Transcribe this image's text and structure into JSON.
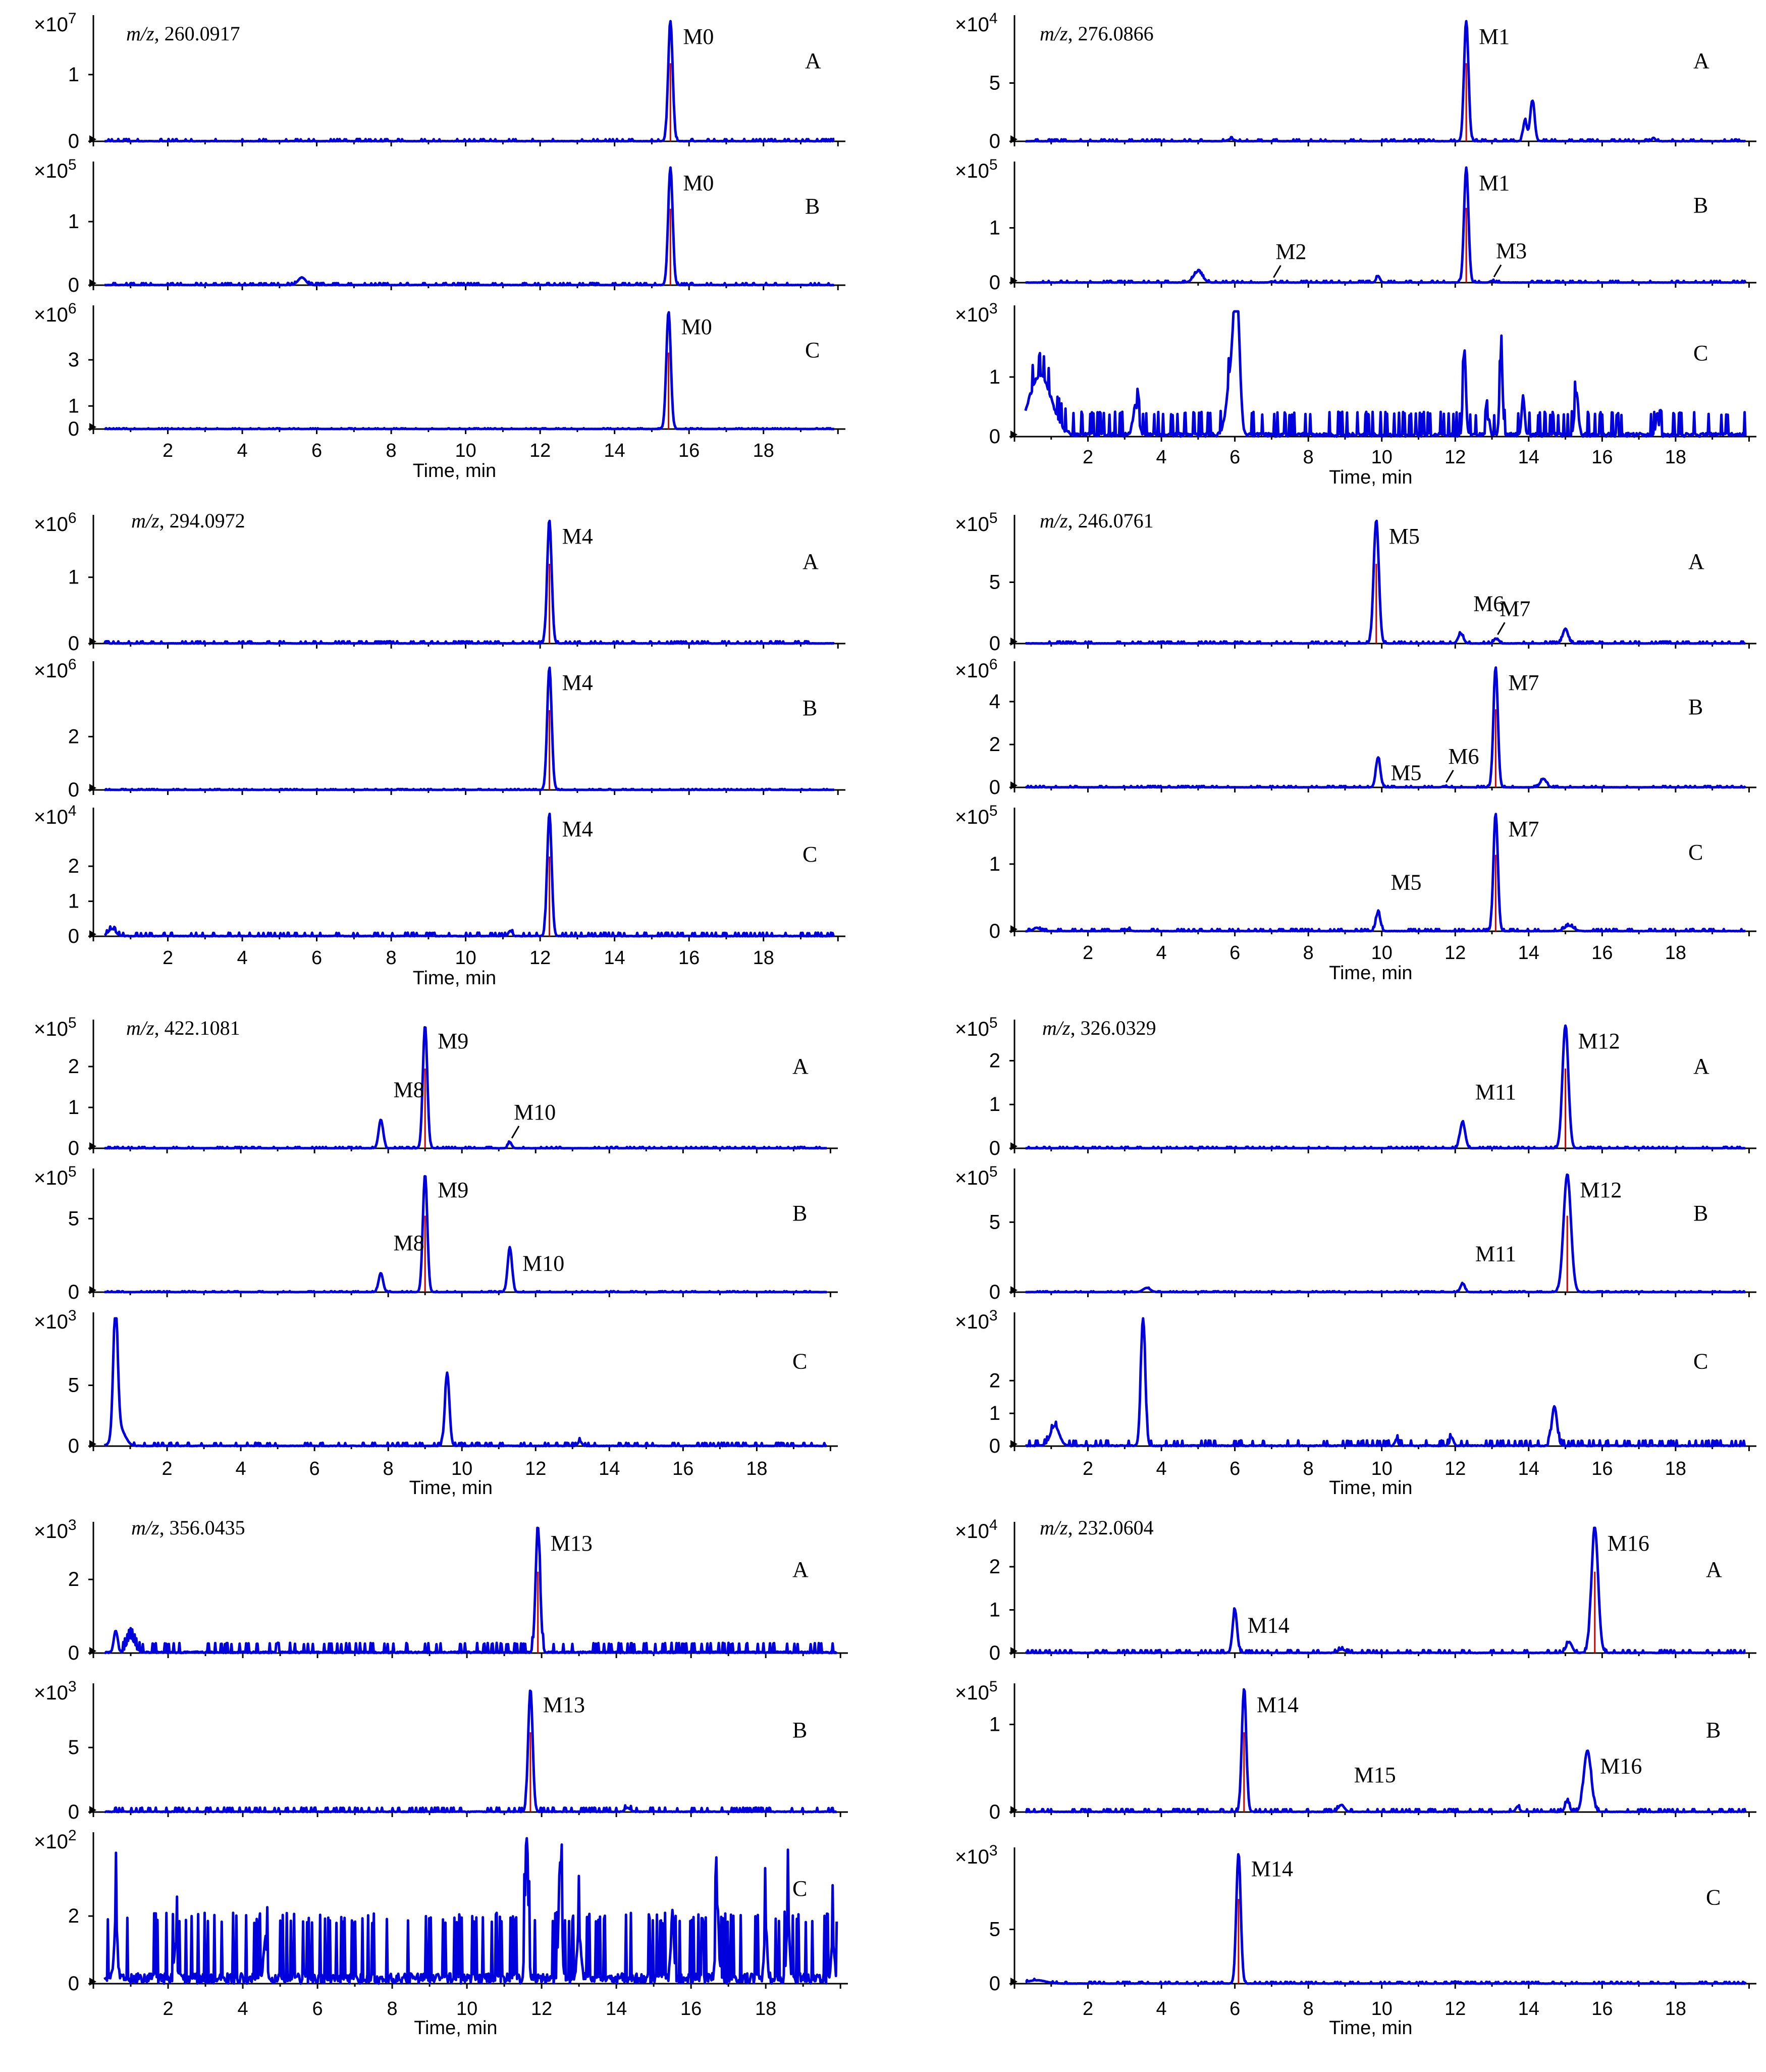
{
  "chart_data": {
    "type": "line",
    "x_label": "Time, min",
    "x_ticks": [
      "2",
      "4",
      "6",
      "8",
      "10",
      "12",
      "14",
      "16",
      "18"
    ],
    "groups": [
      {
        "id": "g1",
        "mz_prefix": "m/z",
        "mz_value": ", 260.0917",
        "panels": [
          {
            "sample": "A",
            "scale_base": "×10",
            "scale_exp": "7",
            "yticks": [
              "0",
              "1"
            ],
            "ymax": 1.8,
            "peaks": [
              {
                "x": 15.5,
                "y": 1.8,
                "w": 0.06,
                "label": "M0"
              }
            ],
            "noise": 0.01,
            "xlabel": false
          },
          {
            "sample": "B",
            "scale_base": "×10",
            "scale_exp": "5",
            "yticks": [
              "0",
              "1"
            ],
            "ymax": 1.85,
            "peaks": [
              {
                "x": 15.5,
                "y": 1.85,
                "w": 0.06,
                "label": "M0"
              },
              {
                "x": 5.6,
                "y": 0.12,
                "w": 0.1
              }
            ],
            "noise": 0.01,
            "xlabel": false
          },
          {
            "sample": "C",
            "scale_base": "×10",
            "scale_exp": "6",
            "yticks": [
              "0",
              "1",
              "3"
            ],
            "ymax": 5.1,
            "peaks": [
              {
                "x": 15.45,
                "y": 5.1,
                "w": 0.06,
                "label": "M0"
              }
            ],
            "noise": 0.01,
            "xlabel": true
          }
        ]
      },
      {
        "id": "g2",
        "mz_prefix": "m/z",
        "mz_value": ", 276.0866",
        "panels": [
          {
            "sample": "A",
            "scale_base": "×10",
            "scale_exp": "4",
            "yticks": [
              "0",
              "5"
            ],
            "ymax": 10.3,
            "peaks": [
              {
                "x": 12.3,
                "y": 10.3,
                "w": 0.06,
                "label": "M1"
              },
              {
                "x": 14.1,
                "y": 3.5,
                "w": 0.06
              },
              {
                "x": 13.9,
                "y": 1.8,
                "w": 0.05
              },
              {
                "x": 5.9,
                "y": 0.2,
                "w": 0.08
              },
              {
                "x": 17.4,
                "y": 0.3,
                "w": 0.04
              }
            ],
            "noise": 0.05,
            "xlabel": false
          },
          {
            "sample": "B",
            "scale_base": "×10",
            "scale_exp": "5",
            "yticks": [
              "0",
              "1"
            ],
            "ymax": 2.1,
            "peaks": [
              {
                "x": 12.3,
                "y": 2.1,
                "w": 0.06,
                "label": "M1"
              },
              {
                "x": 5.0,
                "y": 0.2,
                "w": 0.12
              },
              {
                "x": 9.9,
                "y": 0.12,
                "w": 0.05
              },
              {
                "x": 7.0,
                "y": 0.02,
                "w": 0.05,
                "label": "M2"
              },
              {
                "x": 13.0,
                "y": 0.03,
                "w": 0.05,
                "label": "M3"
              }
            ],
            "noise": 0.01,
            "xlabel": false
          },
          {
            "sample": "C",
            "scale_base": "×10",
            "scale_exp": "3",
            "yticks": [
              "0",
              "1"
            ],
            "ymax": 2.1,
            "peaks": [
              {
                "x": 6.05,
                "y": 2.1,
                "w": 0.08
              },
              {
                "x": 5.9,
                "y": 1.0,
                "w": 0.12
              },
              {
                "x": 12.25,
                "y": 1.4,
                "w": 0.04
              },
              {
                "x": 13.25,
                "y": 1.35,
                "w": 0.04
              },
              {
                "x": 13.85,
                "y": 0.65,
                "w": 0.04
              },
              {
                "x": 15.3,
                "y": 0.7,
                "w": 0.05
              },
              {
                "x": 3.3,
                "y": 0.5,
                "w": 0.07
              },
              {
                "x": 0.7,
                "y": 1.0,
                "w": 0.3
              },
              {
                "x": 17.5,
                "y": 0.35,
                "w": 0.04
              },
              {
                "x": 12.9,
                "y": 0.3,
                "w": 0.04
              }
            ],
            "noise": 0.12,
            "xlabel": true
          }
        ]
      },
      {
        "id": "g3",
        "mz_prefix": "m/z",
        "mz_value": ", 294.0972",
        "panels": [
          {
            "sample": "A",
            "scale_base": "×10",
            "scale_exp": "6",
            "yticks": [
              "0",
              "1"
            ],
            "ymax": 1.85,
            "peaks": [
              {
                "x": 12.25,
                "y": 1.85,
                "w": 0.06,
                "label": "M4"
              }
            ],
            "noise": 0.01,
            "xlabel": false
          },
          {
            "sample": "B",
            "scale_base": "×10",
            "scale_exp": "6",
            "yticks": [
              "0",
              "2"
            ],
            "ymax": 4.6,
            "peaks": [
              {
                "x": 12.25,
                "y": 4.6,
                "w": 0.06,
                "label": "M4"
              }
            ],
            "noise": 0.01,
            "xlabel": false
          },
          {
            "sample": "C",
            "scale_base": "×10",
            "scale_exp": "4",
            "yticks": [
              "0",
              "1",
              "2"
            ],
            "ymax": 3.5,
            "peaks": [
              {
                "x": 12.25,
                "y": 3.5,
                "w": 0.06,
                "label": "M4"
              },
              {
                "x": 0.5,
                "y": 0.2,
                "w": 0.1
              },
              {
                "x": 11.2,
                "y": 0.15,
                "w": 0.05
              }
            ],
            "noise": 0.03,
            "xlabel": true
          }
        ]
      },
      {
        "id": "g4",
        "mz_prefix": "m/z",
        "mz_value": ", 246.0761",
        "panels": [
          {
            "sample": "A",
            "scale_base": "×10",
            "scale_exp": "5",
            "yticks": [
              "0",
              "5"
            ],
            "ymax": 10.0,
            "peaks": [
              {
                "x": 9.85,
                "y": 10.0,
                "w": 0.07,
                "label": "M5"
              },
              {
                "x": 12.15,
                "y": 0.8,
                "w": 0.07,
                "label": "M6"
              },
              {
                "x": 13.1,
                "y": 0.4,
                "w": 0.05,
                "label": "M7"
              },
              {
                "x": 15.0,
                "y": 1.2,
                "w": 0.07
              }
            ],
            "noise": 0.05,
            "xlabel": false
          },
          {
            "sample": "B",
            "scale_base": "×10",
            "scale_exp": "6",
            "yticks": [
              "0",
              "2",
              "4"
            ],
            "ymax": 5.6,
            "peaks": [
              {
                "x": 13.1,
                "y": 5.6,
                "w": 0.06,
                "label": "M7"
              },
              {
                "x": 9.9,
                "y": 1.4,
                "w": 0.06,
                "label": "M5"
              },
              {
                "x": 11.7,
                "y": 0.05,
                "w": 0.05,
                "label": "M6"
              },
              {
                "x": 14.4,
                "y": 0.4,
                "w": 0.08
              }
            ],
            "noise": 0.02,
            "xlabel": false
          },
          {
            "sample": "C",
            "scale_base": "×10",
            "scale_exp": "5",
            "yticks": [
              "0",
              "1"
            ],
            "ymax": 1.75,
            "peaks": [
              {
                "x": 13.1,
                "y": 1.75,
                "w": 0.06,
                "label": "M7"
              },
              {
                "x": 9.9,
                "y": 0.28,
                "w": 0.06,
                "label": "M5"
              },
              {
                "x": 0.6,
                "y": 0.05,
                "w": 0.08
              },
              {
                "x": 15.1,
                "y": 0.08,
                "w": 0.12
              },
              {
                "x": 3.1,
                "y": 0.03,
                "w": 0.05
              }
            ],
            "noise": 0.01,
            "xlabel": true
          }
        ]
      },
      {
        "id": "g5",
        "mz_prefix": "m/z",
        "mz_value": ", 422.1081",
        "panels": [
          {
            "sample": "A",
            "scale_base": "×10",
            "scale_exp": "5",
            "yticks": [
              "0",
              "1",
              "2"
            ],
            "ymax": 3.0,
            "peaks": [
              {
                "x": 9.0,
                "y": 3.0,
                "w": 0.06,
                "label": "M9"
              },
              {
                "x": 7.8,
                "y": 0.7,
                "w": 0.06,
                "label": "M8"
              },
              {
                "x": 11.3,
                "y": 0.15,
                "w": 0.05,
                "label": "M10"
              }
            ],
            "noise": 0.01,
            "xlabel": false
          },
          {
            "sample": "B",
            "scale_base": "×10",
            "scale_exp": "5",
            "yticks": [
              "0",
              "5"
            ],
            "ymax": 8.0,
            "peaks": [
              {
                "x": 9.0,
                "y": 8.0,
                "w": 0.06,
                "label": "M9"
              },
              {
                "x": 7.8,
                "y": 1.3,
                "w": 0.06,
                "label": "M8"
              },
              {
                "x": 11.3,
                "y": 3.0,
                "w": 0.06,
                "label": "M10"
              }
            ],
            "noise": 0.02,
            "xlabel": false
          },
          {
            "sample": "C",
            "scale_base": "×10",
            "scale_exp": "3",
            "yticks": [
              "0",
              "5"
            ],
            "ymax": 10.5,
            "peaks": [
              {
                "x": 0.6,
                "y": 10.5,
                "w": 0.06
              },
              {
                "x": 0.7,
                "y": 1.5,
                "w": 0.15
              },
              {
                "x": 9.6,
                "y": 6.0,
                "w": 0.06
              },
              {
                "x": 13.2,
                "y": 0.4,
                "w": 0.05
              }
            ],
            "noise": 0.08,
            "xlabel": true
          }
        ]
      },
      {
        "id": "g6",
        "mz_prefix": "m/z",
        "mz_value": ", 326.0329",
        "panels": [
          {
            "sample": "A",
            "scale_base": "×10",
            "scale_exp": "5",
            "yticks": [
              "0",
              "1",
              "2"
            ],
            "ymax": 2.8,
            "peaks": [
              {
                "x": 15.0,
                "y": 2.8,
                "w": 0.08,
                "label": "M12"
              },
              {
                "x": 12.2,
                "y": 0.6,
                "w": 0.07,
                "label": "M11"
              }
            ],
            "noise": 0.01,
            "xlabel": false
          },
          {
            "sample": "B",
            "scale_base": "×10",
            "scale_exp": "5",
            "yticks": [
              "0",
              "5"
            ],
            "ymax": 8.4,
            "peaks": [
              {
                "x": 15.05,
                "y": 8.4,
                "w": 0.1,
                "label": "M12"
              },
              {
                "x": 12.2,
                "y": 0.6,
                "w": 0.06,
                "label": "M11"
              },
              {
                "x": 3.6,
                "y": 0.3,
                "w": 0.1
              }
            ],
            "noise": 0.02,
            "xlabel": false
          },
          {
            "sample": "C",
            "scale_base": "×10",
            "scale_exp": "3",
            "yticks": [
              "0",
              "1",
              "2"
            ],
            "ymax": 3.9,
            "peaks": [
              {
                "x": 3.5,
                "y": 3.9,
                "w": 0.06
              },
              {
                "x": 14.7,
                "y": 1.2,
                "w": 0.07
              },
              {
                "x": 1.1,
                "y": 0.6,
                "w": 0.12
              },
              {
                "x": 10.4,
                "y": 0.2,
                "w": 0.04
              },
              {
                "x": 11.9,
                "y": 0.25,
                "w": 0.05
              }
            ],
            "noise": 0.05,
            "xlabel": true
          }
        ]
      },
      {
        "id": "g7",
        "mz_prefix": "m/z",
        "mz_value": ", 356.0435",
        "panels": [
          {
            "sample": "A",
            "scale_base": "×10",
            "scale_exp": "3",
            "yticks": [
              "0",
              "2"
            ],
            "ymax": 3.4,
            "peaks": [
              {
                "x": 11.9,
                "y": 3.4,
                "w": 0.06,
                "label": "M13"
              },
              {
                "x": 0.6,
                "y": 0.6,
                "w": 0.05
              },
              {
                "x": 1.0,
                "y": 0.4,
                "w": 0.1
              }
            ],
            "noise": 0.08,
            "xlabel": false
          },
          {
            "sample": "B",
            "scale_base": "×10",
            "scale_exp": "3",
            "yticks": [
              "0",
              "5"
            ],
            "ymax": 9.5,
            "peaks": [
              {
                "x": 11.7,
                "y": 9.5,
                "w": 0.06,
                "label": "M13"
              },
              {
                "x": 14.3,
                "y": 0.3,
                "w": 0.07
              }
            ],
            "noise": 0.1,
            "xlabel": false
          },
          {
            "sample": "C",
            "scale_base": "×10",
            "scale_exp": "2",
            "yticks": [
              "0",
              "2"
            ],
            "ymax": 4.3,
            "peaks": [
              {
                "x": 11.6,
                "y": 4.3,
                "w": 0.04
              },
              {
                "x": 12.5,
                "y": 3.6,
                "w": 0.04
              },
              {
                "x": 16.7,
                "y": 2.2,
                "w": 0.04
              },
              {
                "x": 18.6,
                "y": 1.9,
                "w": 0.04
              },
              {
                "x": 15.5,
                "y": 1.9,
                "w": 0.04
              },
              {
                "x": 18.0,
                "y": 1.6,
                "w": 0.04
              },
              {
                "x": 0.6,
                "y": 1.9,
                "w": 0.04
              },
              {
                "x": 4.6,
                "y": 1.2,
                "w": 0.04
              },
              {
                "x": 2.2,
                "y": 1.0,
                "w": 0.04
              },
              {
                "x": 13.0,
                "y": 1.4,
                "w": 0.05
              },
              {
                "x": 19.8,
                "y": 1.1,
                "w": 0.04
              }
            ],
            "noise": 0.6,
            "xlabel": true
          }
        ]
      },
      {
        "id": "g8",
        "mz_prefix": "m/z",
        "mz_value": ", 232.0604",
        "panels": [
          {
            "sample": "A",
            "scale_base": "×10",
            "scale_exp": "4",
            "yticks": [
              "0",
              "1",
              "2"
            ],
            "ymax": 2.9,
            "peaks": [
              {
                "x": 15.8,
                "y": 2.9,
                "w": 0.09,
                "label": "M16"
              },
              {
                "x": 6.0,
                "y": 1.0,
                "w": 0.06,
                "label": "M14"
              },
              {
                "x": 15.1,
                "y": 0.25,
                "w": 0.08
              },
              {
                "x": 8.9,
                "y": 0.08,
                "w": 0.1
              }
            ],
            "noise": 0.02,
            "xlabel": false
          },
          {
            "sample": "B",
            "scale_base": "×10",
            "scale_exp": "5",
            "yticks": [
              "0",
              "1"
            ],
            "ymax": 1.4,
            "peaks": [
              {
                "x": 6.25,
                "y": 1.4,
                "w": 0.06,
                "label": "M14"
              },
              {
                "x": 15.6,
                "y": 0.7,
                "w": 0.1,
                "label": "M16"
              },
              {
                "x": 8.9,
                "y": 0.08,
                "w": 0.08,
                "label": "M15"
              },
              {
                "x": 15.05,
                "y": 0.12,
                "w": 0.06
              },
              {
                "x": 13.7,
                "y": 0.06,
                "w": 0.05
              }
            ],
            "noise": 0.01,
            "xlabel": false
          },
          {
            "sample": "C",
            "scale_base": "×10",
            "scale_exp": "3",
            "yticks": [
              "0",
              "5"
            ],
            "ymax": 12.0,
            "peaks": [
              {
                "x": 6.1,
                "y": 12.0,
                "w": 0.06,
                "label": "M14"
              },
              {
                "x": 0.6,
                "y": 0.3,
                "w": 0.25
              },
              {
                "x": 12.0,
                "y": 0.2,
                "w": 0.04
              }
            ],
            "noise": 0.05,
            "xlabel": true
          }
        ]
      }
    ]
  }
}
